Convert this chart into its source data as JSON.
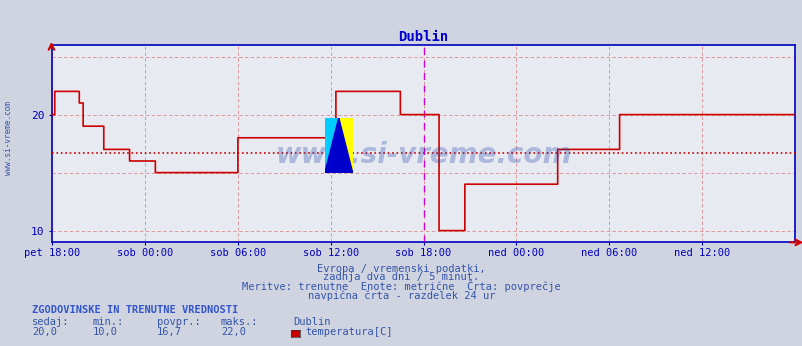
{
  "title": "Dublin",
  "title_color": "#0000cc",
  "bg_color": "#d0d4e0",
  "plot_bg_color": "#e8eaf2",
  "line_color": "#cc0000",
  "avg_line_color": "#cc0000",
  "avg_value": 16.7,
  "ymin": 10,
  "ymax": 26,
  "yticks": [
    10,
    20
  ],
  "grid_color": "#dd8888",
  "vline_color": "#cc00cc",
  "axis_color": "#0000bb",
  "text_color": "#4466aa",
  "legend_text_color": "#3355aa",
  "watermark_color": "#2244aa",
  "xtick_labels": [
    "pet 18:00",
    "sob 00:00",
    "sob 06:00",
    "sob 12:00",
    "sob 18:00",
    "ned 00:00",
    "ned 06:00",
    "ned 12:00"
  ],
  "xtick_positions": [
    0,
    72,
    144,
    216,
    288,
    360,
    432,
    504
  ],
  "total_points": 576,
  "vline_positions": [
    288
  ],
  "subtitle_lines": [
    "Evropa / vremenski podatki,",
    "zadnja dva dni / 5 minut.",
    "Meritve: trenutne  Enote: metrične  Črta: povprečje",
    "navpična črta - razdelek 24 ur"
  ],
  "legend_title": "ZGODOVINSKE IN TRENUTNE VREDNOSTI",
  "legend_headers": [
    "sedaj:",
    "min.:",
    "povpr.:",
    "maks.:"
  ],
  "legend_values": [
    "20,0",
    "10,0",
    "16,7",
    "22,0"
  ],
  "legend_label": "Dublin",
  "legend_series": "temperatura[C]",
  "legend_color": "#cc0000",
  "sidebar_text": "www.si-vreme.com",
  "watermark_text": "www.si-vreme.com",
  "temperature_data": [
    20,
    20,
    22,
    22,
    22,
    22,
    22,
    22,
    22,
    22,
    22,
    22,
    22,
    22,
    22,
    22,
    22,
    22,
    22,
    22,
    22,
    21,
    21,
    21,
    19,
    19,
    19,
    19,
    19,
    19,
    19,
    19,
    19,
    19,
    19,
    19,
    19,
    19,
    19,
    19,
    17,
    17,
    17,
    17,
    17,
    17,
    17,
    17,
    17,
    17,
    17,
    17,
    17,
    17,
    17,
    17,
    17,
    17,
    17,
    17,
    16,
    16,
    16,
    16,
    16,
    16,
    16,
    16,
    16,
    16,
    16,
    16,
    16,
    16,
    16,
    16,
    16,
    16,
    16,
    16,
    15,
    15,
    15,
    15,
    15,
    15,
    15,
    15,
    15,
    15,
    15,
    15,
    15,
    15,
    15,
    15,
    15,
    15,
    15,
    15,
    15,
    15,
    15,
    15,
    15,
    15,
    15,
    15,
    15,
    15,
    15,
    15,
    15,
    15,
    15,
    15,
    15,
    15,
    15,
    15,
    15,
    15,
    15,
    15,
    15,
    15,
    15,
    15,
    15,
    15,
    15,
    15,
    15,
    15,
    15,
    15,
    15,
    15,
    15,
    15,
    15,
    15,
    15,
    15,
    18,
    18,
    18,
    18,
    18,
    18,
    18,
    18,
    18,
    18,
    18,
    18,
    18,
    18,
    18,
    18,
    18,
    18,
    18,
    18,
    18,
    18,
    18,
    18,
    18,
    18,
    18,
    18,
    18,
    18,
    18,
    18,
    18,
    18,
    18,
    18,
    18,
    18,
    18,
    18,
    18,
    18,
    18,
    18,
    18,
    18,
    18,
    18,
    18,
    18,
    18,
    18,
    18,
    18,
    18,
    18,
    18,
    18,
    18,
    18,
    18,
    18,
    18,
    18,
    18,
    18,
    18,
    18,
    18,
    18,
    18,
    18,
    18,
    18,
    18,
    18,
    22,
    22,
    22,
    22,
    22,
    22,
    22,
    22,
    22,
    22,
    22,
    22,
    22,
    22,
    22,
    22,
    22,
    22,
    22,
    22,
    22,
    22,
    22,
    22,
    22,
    22,
    22,
    22,
    22,
    22,
    22,
    22,
    22,
    22,
    22,
    22,
    22,
    22,
    22,
    22,
    22,
    22,
    22,
    22,
    22,
    22,
    22,
    22,
    22,
    22,
    20,
    20,
    20,
    20,
    20,
    20,
    20,
    20,
    20,
    20,
    20,
    20,
    20,
    20,
    20,
    20,
    20,
    20,
    20,
    20,
    20,
    20,
    20,
    20,
    20,
    20,
    20,
    20,
    20,
    20,
    10,
    10,
    10,
    10,
    10,
    10,
    10,
    10,
    10,
    10,
    10,
    10,
    10,
    10,
    10,
    10,
    10,
    10,
    10,
    10,
    14,
    14,
    14,
    14,
    14,
    14,
    14,
    14,
    14,
    14,
    14,
    14,
    14,
    14,
    14,
    14,
    14,
    14,
    14,
    14,
    14,
    14,
    14,
    14,
    14,
    14,
    14,
    14,
    14,
    14,
    14,
    14,
    14,
    14,
    14,
    14,
    14,
    14,
    14,
    14,
    14,
    14,
    14,
    14,
    14,
    14,
    14,
    14,
    14,
    14,
    14,
    14,
    14,
    14,
    14,
    14,
    14,
    14,
    14,
    14,
    14,
    14,
    14,
    14,
    14,
    14,
    14,
    14,
    14,
    14,
    14,
    14,
    17,
    17,
    17,
    17,
    17,
    17,
    17,
    17,
    17,
    17,
    17,
    17,
    17,
    17,
    17,
    17,
    17,
    17,
    17,
    17,
    17,
    17,
    17,
    17,
    17,
    17,
    17,
    17,
    17,
    17,
    17,
    17,
    17,
    17,
    17,
    17,
    17,
    17,
    17,
    17,
    17,
    17,
    17,
    17,
    17,
    17,
    17,
    17,
    20,
    20,
    20,
    20,
    20,
    20,
    20,
    20,
    20,
    20,
    20,
    20,
    20,
    20,
    20,
    20,
    20,
    20,
    20,
    20,
    20,
    20,
    20,
    20,
    20,
    20,
    20,
    20,
    20,
    20,
    20,
    20,
    20,
    20,
    20,
    20,
    20,
    20,
    20,
    20,
    20,
    20,
    20,
    20,
    20,
    20,
    20,
    20,
    20,
    20,
    20,
    20,
    20,
    20,
    20,
    20,
    20,
    20,
    20,
    20,
    20,
    20,
    20,
    20,
    20,
    20,
    20,
    20,
    20,
    20,
    20,
    20,
    20,
    20,
    20,
    20,
    20,
    20,
    20,
    20,
    20,
    20,
    20,
    20,
    20,
    20,
    20,
    20,
    20,
    20,
    20,
    20,
    20,
    20,
    20,
    20,
    20,
    20,
    20,
    20,
    20,
    20,
    20,
    20,
    20,
    20,
    20,
    20,
    20,
    20,
    20,
    20,
    20,
    20,
    20,
    20,
    20,
    20,
    20,
    20,
    20,
    20,
    20,
    20,
    20,
    20,
    20,
    20,
    20,
    20,
    20,
    20,
    20,
    20,
    20,
    20
  ]
}
